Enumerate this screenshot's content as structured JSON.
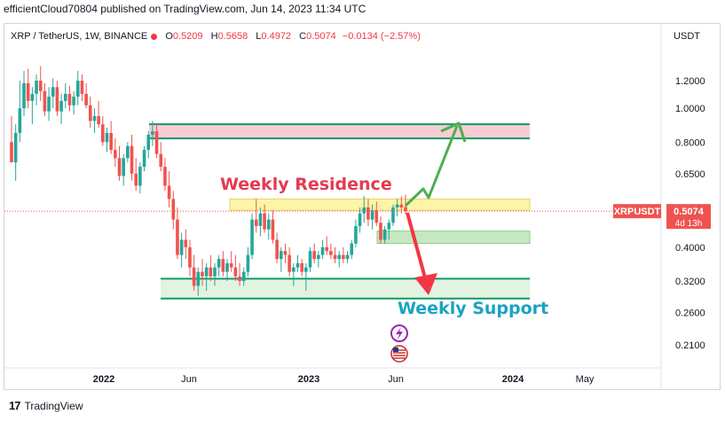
{
  "header": {
    "publisher": "efficientCloud70804 published on TradingView.com, Jun 14, 2023 11:34 UTC"
  },
  "legend": {
    "symbol": "XRP / TetherUS, 1W, BINANCE",
    "open_label": "O",
    "open": "0.5209",
    "high_label": "H",
    "high": "0.5658",
    "low_label": "L",
    "low": "0.4972",
    "close_label": "C",
    "close": "0.5074",
    "change": "−0.0134 (−2.57%)"
  },
  "currency": "USDT",
  "annotations": {
    "residence": "Weekly Residence",
    "support": "Weekly Support"
  },
  "price_tag": {
    "symbol": "XRPUSDT",
    "price": "0.5074",
    "countdown": "4d 13h"
  },
  "footer": {
    "brand": "TradingView"
  },
  "colors": {
    "up": "#26a69a",
    "down": "#ef5350",
    "residence_text": "#e53950",
    "support_text": "#1aa3c2",
    "zone_red": "#f8cdd4",
    "zone_yellow": "#fdf4a8",
    "zone_green": "#c6e8c1",
    "zone_border": "#119a68",
    "arrow_green": "#4caf50",
    "arrow_red": "#f23645"
  },
  "chart_data": {
    "type": "candlestick",
    "scale": "log",
    "y_ticks": [
      1.2,
      1.0,
      0.8,
      0.65,
      0.5,
      0.4,
      0.32,
      0.26,
      0.21
    ],
    "y_tick_labels": [
      "1.2000",
      "1.0000",
      "0.8000",
      "0.6500",
      "0.5074",
      "0.4000",
      "0.3200",
      "0.2600",
      "0.2100"
    ],
    "x_ticks": [
      "2022",
      "Jun",
      "2023",
      "Jun",
      "2024",
      "May"
    ],
    "last_price": 0.5074,
    "zones": [
      {
        "name": "resistance-upper",
        "low": 0.82,
        "high": 0.9
      },
      {
        "name": "weekly-residence",
        "low": 0.51,
        "high": 0.55
      },
      {
        "name": "mid-support",
        "low": 0.41,
        "high": 0.445
      },
      {
        "name": "weekly-support",
        "low": 0.285,
        "high": 0.325
      }
    ],
    "candles": [
      [
        0.8,
        0.95,
        0.7,
        0.7
      ],
      [
        0.7,
        0.9,
        0.62,
        0.85
      ],
      [
        0.85,
        1.2,
        0.8,
        1.0
      ],
      [
        1.0,
        1.28,
        0.95,
        1.18
      ],
      [
        1.18,
        1.3,
        1.0,
        1.05
      ],
      [
        1.05,
        1.15,
        0.9,
        1.1
      ],
      [
        1.1,
        1.25,
        1.02,
        1.2
      ],
      [
        1.2,
        1.32,
        1.05,
        1.12
      ],
      [
        1.12,
        1.18,
        0.95,
        0.98
      ],
      [
        0.98,
        1.15,
        0.92,
        1.08
      ],
      [
        1.08,
        1.22,
        1.0,
        1.15
      ],
      [
        1.15,
        1.2,
        0.95,
        0.98
      ],
      [
        0.98,
        1.1,
        0.9,
        1.05
      ],
      [
        1.05,
        1.18,
        1.0,
        1.1
      ],
      [
        1.1,
        1.16,
        0.98,
        1.02
      ],
      [
        1.02,
        1.12,
        0.96,
        1.08
      ],
      [
        1.08,
        1.28,
        1.02,
        1.2
      ],
      [
        1.2,
        1.25,
        1.05,
        1.1
      ],
      [
        1.1,
        1.18,
        1.0,
        1.02
      ],
      [
        1.02,
        1.08,
        0.88,
        0.92
      ],
      [
        0.92,
        1.0,
        0.85,
        0.95
      ],
      [
        0.95,
        1.05,
        0.88,
        0.9
      ],
      [
        0.9,
        0.95,
        0.78,
        0.8
      ],
      [
        0.8,
        0.88,
        0.75,
        0.85
      ],
      [
        0.85,
        0.92,
        0.74,
        0.76
      ],
      [
        0.76,
        0.82,
        0.68,
        0.72
      ],
      [
        0.72,
        0.78,
        0.62,
        0.64
      ],
      [
        0.64,
        0.74,
        0.6,
        0.72
      ],
      [
        0.72,
        0.8,
        0.7,
        0.78
      ],
      [
        0.78,
        0.84,
        0.62,
        0.65
      ],
      [
        0.65,
        0.72,
        0.58,
        0.6
      ],
      [
        0.6,
        0.7,
        0.57,
        0.68
      ],
      [
        0.68,
        0.78,
        0.66,
        0.76
      ],
      [
        0.76,
        0.86,
        0.72,
        0.84
      ],
      [
        0.84,
        0.92,
        0.78,
        0.86
      ],
      [
        0.86,
        0.9,
        0.72,
        0.74
      ],
      [
        0.74,
        0.8,
        0.66,
        0.68
      ],
      [
        0.68,
        0.72,
        0.58,
        0.6
      ],
      [
        0.6,
        0.66,
        0.52,
        0.55
      ],
      [
        0.55,
        0.58,
        0.45,
        0.48
      ],
      [
        0.48,
        0.52,
        0.37,
        0.38
      ],
      [
        0.38,
        0.44,
        0.35,
        0.42
      ],
      [
        0.42,
        0.45,
        0.37,
        0.4
      ],
      [
        0.4,
        0.42,
        0.33,
        0.35
      ],
      [
        0.35,
        0.38,
        0.3,
        0.31
      ],
      [
        0.31,
        0.35,
        0.29,
        0.34
      ],
      [
        0.34,
        0.37,
        0.31,
        0.33
      ],
      [
        0.33,
        0.36,
        0.3,
        0.35
      ],
      [
        0.35,
        0.38,
        0.32,
        0.33
      ],
      [
        0.33,
        0.36,
        0.31,
        0.35
      ],
      [
        0.35,
        0.38,
        0.33,
        0.37
      ],
      [
        0.37,
        0.39,
        0.33,
        0.34
      ],
      [
        0.34,
        0.37,
        0.32,
        0.36
      ],
      [
        0.36,
        0.39,
        0.34,
        0.35
      ],
      [
        0.35,
        0.38,
        0.32,
        0.33
      ],
      [
        0.33,
        0.36,
        0.31,
        0.32
      ],
      [
        0.32,
        0.35,
        0.31,
        0.34
      ],
      [
        0.34,
        0.4,
        0.33,
        0.38
      ],
      [
        0.38,
        0.5,
        0.37,
        0.48
      ],
      [
        0.48,
        0.55,
        0.44,
        0.46
      ],
      [
        0.46,
        0.52,
        0.43,
        0.5
      ],
      [
        0.5,
        0.53,
        0.44,
        0.45
      ],
      [
        0.45,
        0.5,
        0.42,
        0.48
      ],
      [
        0.48,
        0.51,
        0.41,
        0.42
      ],
      [
        0.42,
        0.44,
        0.36,
        0.37
      ],
      [
        0.37,
        0.4,
        0.34,
        0.39
      ],
      [
        0.39,
        0.41,
        0.36,
        0.38
      ],
      [
        0.38,
        0.4,
        0.33,
        0.34
      ],
      [
        0.34,
        0.36,
        0.31,
        0.35
      ],
      [
        0.35,
        0.38,
        0.34,
        0.36
      ],
      [
        0.36,
        0.37,
        0.33,
        0.34
      ],
      [
        0.34,
        0.36,
        0.3,
        0.35
      ],
      [
        0.35,
        0.4,
        0.34,
        0.39
      ],
      [
        0.39,
        0.41,
        0.36,
        0.37
      ],
      [
        0.37,
        0.39,
        0.35,
        0.38
      ],
      [
        0.38,
        0.42,
        0.37,
        0.4
      ],
      [
        0.4,
        0.43,
        0.38,
        0.39
      ],
      [
        0.39,
        0.41,
        0.37,
        0.38
      ],
      [
        0.38,
        0.4,
        0.36,
        0.37
      ],
      [
        0.37,
        0.39,
        0.35,
        0.38
      ],
      [
        0.38,
        0.4,
        0.36,
        0.37
      ],
      [
        0.37,
        0.39,
        0.36,
        0.38
      ],
      [
        0.38,
        0.42,
        0.37,
        0.41
      ],
      [
        0.41,
        0.48,
        0.4,
        0.46
      ],
      [
        0.46,
        0.52,
        0.44,
        0.5
      ],
      [
        0.5,
        0.56,
        0.47,
        0.52
      ],
      [
        0.52,
        0.55,
        0.46,
        0.48
      ],
      [
        0.48,
        0.53,
        0.45,
        0.51
      ],
      [
        0.51,
        0.54,
        0.46,
        0.47
      ],
      [
        0.47,
        0.49,
        0.41,
        0.42
      ],
      [
        0.42,
        0.46,
        0.41,
        0.45
      ],
      [
        0.45,
        0.48,
        0.42,
        0.47
      ],
      [
        0.47,
        0.53,
        0.46,
        0.52
      ],
      [
        0.52,
        0.55,
        0.49,
        0.53
      ],
      [
        0.53,
        0.56,
        0.5,
        0.52
      ],
      [
        0.5209,
        0.5658,
        0.4972,
        0.5074
      ]
    ]
  }
}
